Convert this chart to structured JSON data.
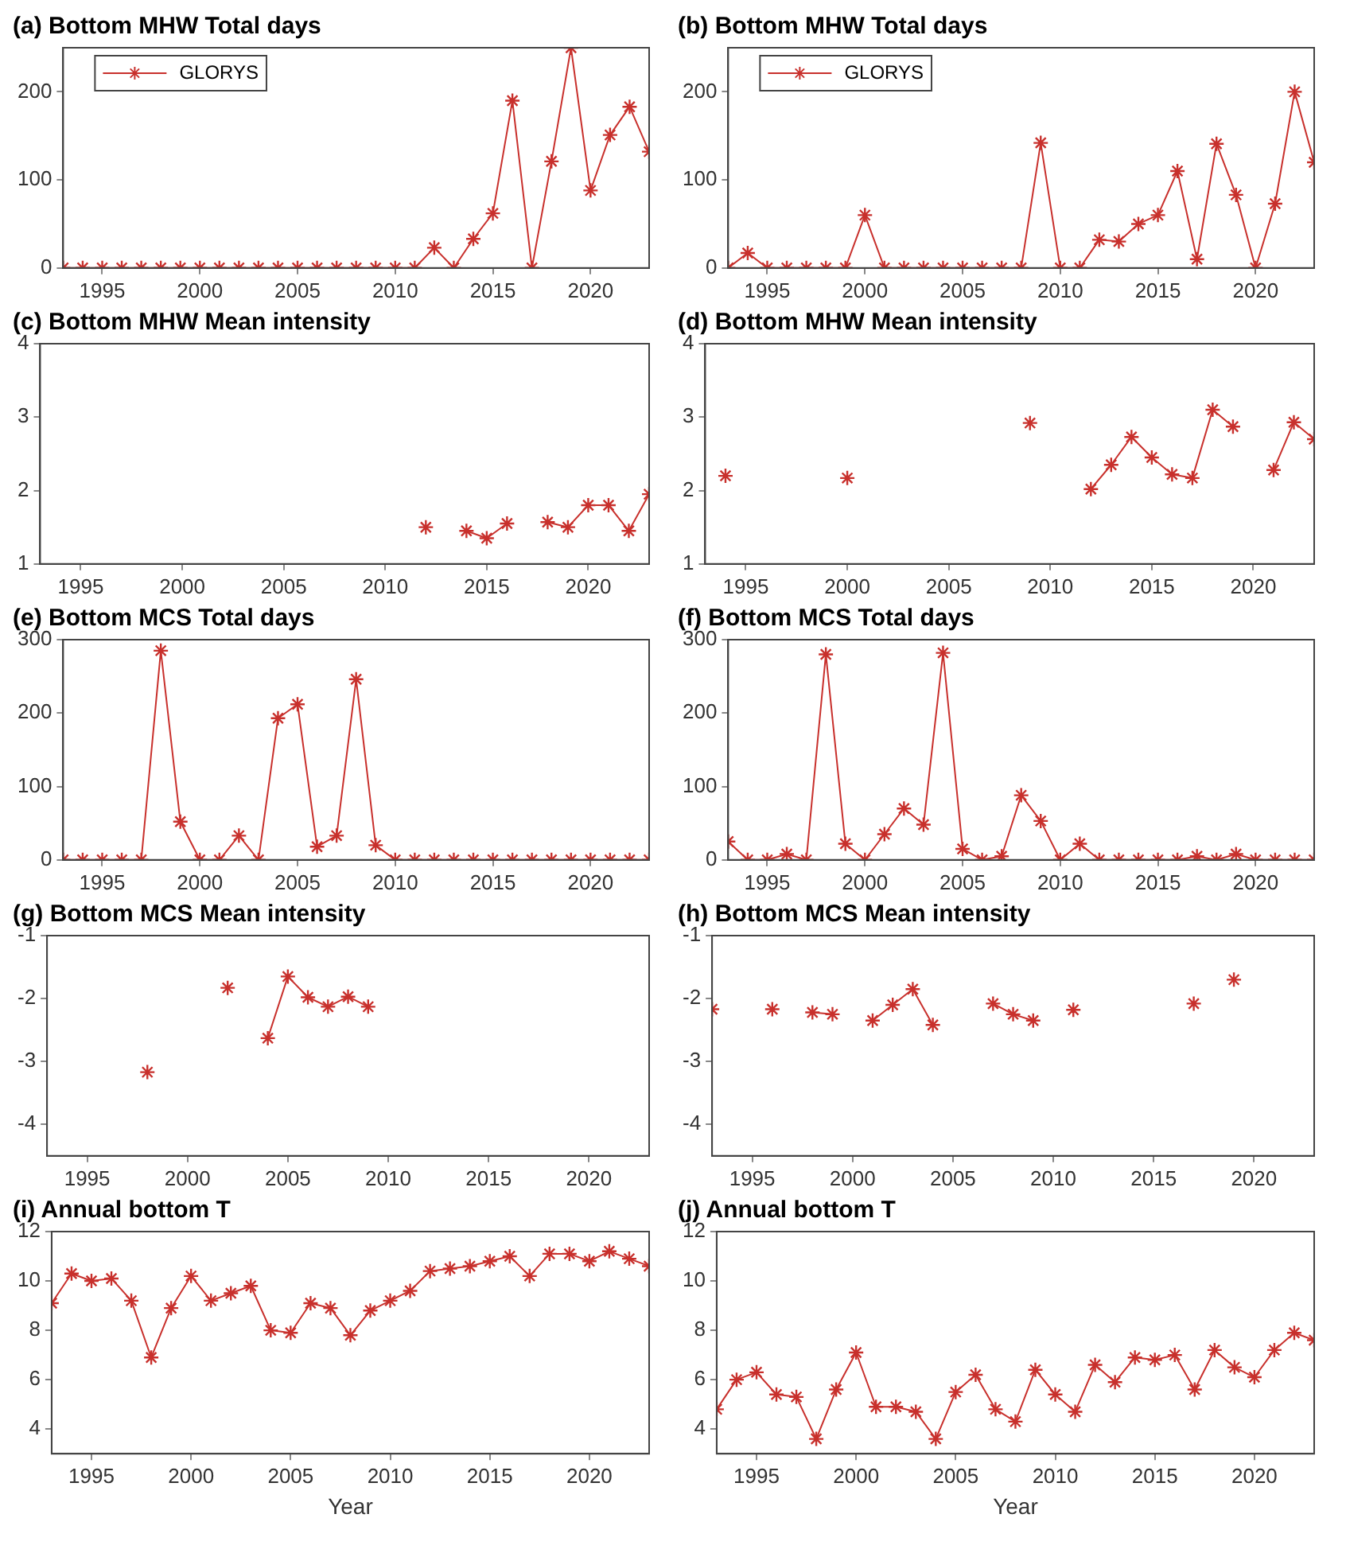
{
  "chart_data": [
    {
      "type": "line",
      "title": "(a) Bottom MHW Total days",
      "x": [
        1993,
        1994,
        1995,
        1996,
        1997,
        1998,
        1999,
        2000,
        2001,
        2002,
        2003,
        2004,
        2005,
        2006,
        2007,
        2008,
        2009,
        2010,
        2011,
        2012,
        2013,
        2014,
        2015,
        2016,
        2017,
        2018,
        2019,
        2020,
        2021,
        2022,
        2023
      ],
      "xlim": [
        1993,
        2023
      ],
      "xticks": [
        1995,
        2000,
        2005,
        2010,
        2015,
        2020
      ],
      "ylim": [
        0,
        250
      ],
      "yticks": [
        0,
        100,
        200
      ],
      "grid": false,
      "legend": "top left",
      "marker": "cross",
      "series": [
        {
          "name": "GLORYS",
          "color": "#c8302c",
          "values": [
            0,
            0,
            0,
            0,
            0,
            0,
            0,
            0,
            0,
            0,
            0,
            0,
            0,
            0,
            0,
            0,
            0,
            0,
            0,
            23,
            0,
            33,
            62,
            190,
            0,
            121,
            250,
            88,
            151,
            183,
            132
          ]
        }
      ]
    },
    {
      "type": "line",
      "title": "(b) Bottom MHW Total days",
      "x": [
        1993,
        1994,
        1995,
        1996,
        1997,
        1998,
        1999,
        2000,
        2001,
        2002,
        2003,
        2004,
        2005,
        2006,
        2007,
        2008,
        2009,
        2010,
        2011,
        2012,
        2013,
        2014,
        2015,
        2016,
        2017,
        2018,
        2019,
        2020,
        2021,
        2022,
        2023
      ],
      "xlim": [
        1993,
        2023
      ],
      "xticks": [
        1995,
        2000,
        2005,
        2010,
        2015,
        2020
      ],
      "ylim": [
        0,
        250
      ],
      "yticks": [
        0,
        100,
        200
      ],
      "grid": false,
      "legend": "top left",
      "marker": "cross",
      "series": [
        {
          "name": "GLORYS",
          "color": "#c8302c",
          "values": [
            0,
            17,
            0,
            0,
            0,
            0,
            0,
            60,
            0,
            0,
            0,
            0,
            0,
            0,
            0,
            0,
            142,
            0,
            0,
            32,
            30,
            50,
            60,
            110,
            10,
            141,
            83,
            0,
            73,
            200,
            120
          ]
        }
      ]
    },
    {
      "type": "line",
      "title": "(c) Bottom MHW Mean intensity",
      "xlim": [
        1993,
        2023
      ],
      "xticks": [
        1995,
        2000,
        2005,
        2010,
        2015,
        2020
      ],
      "ylim": [
        1,
        4
      ],
      "yticks": [
        1,
        2,
        3,
        4
      ],
      "grid": false,
      "marker": "cross",
      "series": [
        {
          "color": "#c8302c",
          "x": [
            2012,
            2013,
            2014,
            2015,
            2016,
            2017,
            2018,
            2019,
            2020,
            2021,
            2022,
            2023
          ],
          "values": [
            1.5,
            null,
            1.45,
            1.35,
            1.55,
            null,
            1.57,
            1.5,
            1.8,
            1.8,
            1.45,
            1.95
          ]
        }
      ]
    },
    {
      "type": "line",
      "title": "(d) Bottom MHW Mean intensity",
      "xlim": [
        1993,
        2023
      ],
      "xticks": [
        1995,
        2000,
        2005,
        2010,
        2015,
        2020
      ],
      "ylim": [
        1,
        4
      ],
      "yticks": [
        1,
        2,
        3,
        4
      ],
      "grid": false,
      "marker": "cross",
      "series": [
        {
          "color": "#c8302c",
          "x": [
            1994,
            1995,
            1996,
            1997,
            1998,
            1999,
            2000,
            2001,
            2002,
            2003,
            2004,
            2005,
            2006,
            2007,
            2008,
            2009,
            2010,
            2011,
            2012,
            2013,
            2014,
            2015,
            2016,
            2017,
            2018,
            2019,
            2020,
            2021,
            2022,
            2023
          ],
          "values": [
            2.2,
            null,
            null,
            null,
            null,
            null,
            2.17,
            null,
            null,
            null,
            null,
            null,
            null,
            null,
            null,
            2.92,
            null,
            null,
            2.02,
            2.35,
            2.73,
            2.45,
            2.22,
            2.17,
            3.1,
            2.87,
            null,
            2.28,
            2.93,
            2.7
          ]
        }
      ]
    },
    {
      "type": "line",
      "title": "(e) Bottom MCS Total days",
      "x": [
        1993,
        1994,
        1995,
        1996,
        1997,
        1998,
        1999,
        2000,
        2001,
        2002,
        2003,
        2004,
        2005,
        2006,
        2007,
        2008,
        2009,
        2010,
        2011,
        2012,
        2013,
        2014,
        2015,
        2016,
        2017,
        2018,
        2019,
        2020,
        2021,
        2022,
        2023
      ],
      "xlim": [
        1993,
        2023
      ],
      "xticks": [
        1995,
        2000,
        2005,
        2010,
        2015,
        2020
      ],
      "ylim": [
        0,
        300
      ],
      "yticks": [
        0,
        100,
        200,
        300
      ],
      "grid": false,
      "marker": "cross",
      "series": [
        {
          "color": "#c8302c",
          "values": [
            0,
            0,
            0,
            0,
            0,
            285,
            52,
            0,
            0,
            33,
            0,
            193,
            212,
            18,
            33,
            246,
            20,
            0,
            0,
            0,
            0,
            0,
            0,
            0,
            0,
            0,
            0,
            0,
            0,
            0,
            0
          ]
        }
      ]
    },
    {
      "type": "line",
      "title": "(f) Bottom MCS Total days",
      "x": [
        1993,
        1994,
        1995,
        1996,
        1997,
        1998,
        1999,
        2000,
        2001,
        2002,
        2003,
        2004,
        2005,
        2006,
        2007,
        2008,
        2009,
        2010,
        2011,
        2012,
        2013,
        2014,
        2015,
        2016,
        2017,
        2018,
        2019,
        2020,
        2021,
        2022,
        2023
      ],
      "xlim": [
        1993,
        2023
      ],
      "xticks": [
        1995,
        2000,
        2005,
        2010,
        2015,
        2020
      ],
      "ylim": [
        0,
        300
      ],
      "yticks": [
        0,
        100,
        200,
        300
      ],
      "grid": false,
      "marker": "cross",
      "series": [
        {
          "color": "#c8302c",
          "values": [
            25,
            0,
            0,
            8,
            0,
            280,
            22,
            0,
            35,
            70,
            48,
            282,
            15,
            0,
            5,
            88,
            53,
            0,
            22,
            0,
            0,
            0,
            0,
            0,
            5,
            0,
            8,
            0,
            0,
            0,
            0
          ]
        }
      ]
    },
    {
      "type": "line",
      "title": "(g) Bottom MCS Mean intensity",
      "xlim": [
        1993,
        2023
      ],
      "xticks": [
        1995,
        2000,
        2005,
        2010,
        2015,
        2020
      ],
      "ylim": [
        -4.5,
        -1
      ],
      "yticks": [
        -4,
        -3,
        -2,
        -1
      ],
      "grid": false,
      "marker": "cross",
      "series": [
        {
          "color": "#c8302c",
          "x": [
            1998,
            1999,
            2000,
            2001,
            2002,
            2003,
            2004,
            2005,
            2006,
            2007,
            2008,
            2009
          ],
          "values": [
            -3.17,
            null,
            null,
            null,
            -1.83,
            null,
            -2.63,
            -1.65,
            -1.98,
            -2.13,
            -1.97,
            -2.13
          ]
        }
      ]
    },
    {
      "type": "line",
      "title": "(h) Bottom MCS Mean intensity",
      "xlim": [
        1993,
        2023
      ],
      "xticks": [
        1995,
        2000,
        2005,
        2010,
        2015,
        2020
      ],
      "ylim": [
        -4.5,
        -1
      ],
      "yticks": [
        -4,
        -3,
        -2,
        -1
      ],
      "grid": false,
      "marker": "cross",
      "series": [
        {
          "color": "#c8302c",
          "x": [
            1993,
            1994,
            1995,
            1996,
            1997,
            1998,
            1999,
            2000,
            2001,
            2002,
            2003,
            2004,
            2005,
            2006,
            2007,
            2008,
            2009,
            2010,
            2011,
            2012,
            2013,
            2014,
            2015,
            2016,
            2017,
            2018,
            2019
          ],
          "values": [
            -2.17,
            null,
            null,
            -2.17,
            null,
            -2.22,
            -2.25,
            null,
            -2.35,
            -2.1,
            -1.85,
            -2.42,
            null,
            null,
            -2.08,
            -2.25,
            -2.35,
            null,
            -2.18,
            null,
            null,
            null,
            null,
            null,
            -2.08,
            null,
            -1.7
          ]
        }
      ]
    },
    {
      "type": "line",
      "title": "(i) Annual bottom T",
      "xlabel": "Year",
      "x": [
        1993,
        1994,
        1995,
        1996,
        1997,
        1998,
        1999,
        2000,
        2001,
        2002,
        2003,
        2004,
        2005,
        2006,
        2007,
        2008,
        2009,
        2010,
        2011,
        2012,
        2013,
        2014,
        2015,
        2016,
        2017,
        2018,
        2019,
        2020,
        2021,
        2022,
        2023
      ],
      "xlim": [
        1993,
        2023
      ],
      "xticks": [
        1995,
        2000,
        2005,
        2010,
        2015,
        2020
      ],
      "ylim": [
        3,
        12
      ],
      "yticks": [
        4,
        6,
        8,
        10,
        12
      ],
      "grid": false,
      "marker": "cross",
      "series": [
        {
          "color": "#c8302c",
          "values": [
            9.1,
            10.3,
            10.0,
            10.1,
            9.2,
            6.9,
            8.9,
            10.2,
            9.2,
            9.5,
            9.8,
            8.0,
            7.9,
            9.1,
            8.9,
            7.8,
            8.8,
            9.2,
            9.6,
            10.4,
            10.5,
            10.6,
            10.8,
            11.0,
            10.2,
            11.1,
            11.1,
            10.8,
            11.2,
            10.9,
            10.6
          ]
        }
      ]
    },
    {
      "type": "line",
      "title": "(j) Annual bottom T",
      "xlabel": "Year",
      "x": [
        1993,
        1994,
        1995,
        1996,
        1997,
        1998,
        1999,
        2000,
        2001,
        2002,
        2003,
        2004,
        2005,
        2006,
        2007,
        2008,
        2009,
        2010,
        2011,
        2012,
        2013,
        2014,
        2015,
        2016,
        2017,
        2018,
        2019,
        2020,
        2021,
        2022,
        2023
      ],
      "xlim": [
        1993,
        2023
      ],
      "xticks": [
        1995,
        2000,
        2005,
        2010,
        2015,
        2020
      ],
      "ylim": [
        3,
        12
      ],
      "yticks": [
        4,
        6,
        8,
        10,
        12
      ],
      "grid": false,
      "marker": "cross",
      "series": [
        {
          "color": "#c8302c",
          "values": [
            4.8,
            6.0,
            6.3,
            5.4,
            5.3,
            3.6,
            5.6,
            7.1,
            4.9,
            4.9,
            4.7,
            3.6,
            5.5,
            6.2,
            4.8,
            4.3,
            6.4,
            5.4,
            4.7,
            6.6,
            5.9,
            6.9,
            6.8,
            7.0,
            5.6,
            7.2,
            6.5,
            6.1,
            7.2,
            7.9,
            7.6
          ]
        }
      ]
    }
  ]
}
